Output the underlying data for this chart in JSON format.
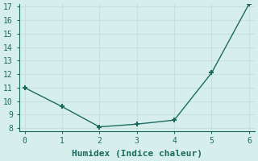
{
  "x": [
    0,
    1,
    2,
    3,
    4,
    5,
    6
  ],
  "y": [
    11.0,
    9.6,
    8.1,
    8.3,
    8.6,
    12.1,
    17.2
  ],
  "xlabel": "Humidex (Indice chaleur)",
  "ylim": [
    8,
    17
  ],
  "xlim": [
    -0.15,
    6.15
  ],
  "yticks": [
    8,
    9,
    10,
    11,
    12,
    13,
    14,
    15,
    16,
    17
  ],
  "xticks": [
    0,
    1,
    2,
    3,
    4,
    5,
    6
  ],
  "line_color": "#1a6b5e",
  "marker": "+",
  "marker_size": 5,
  "bg_color": "#d6eeec",
  "grid_color": "#c8e0dc",
  "axis_color": "#1a6b5e",
  "font_family": "monospace",
  "xlabel_fontsize": 8,
  "tick_fontsize": 7
}
